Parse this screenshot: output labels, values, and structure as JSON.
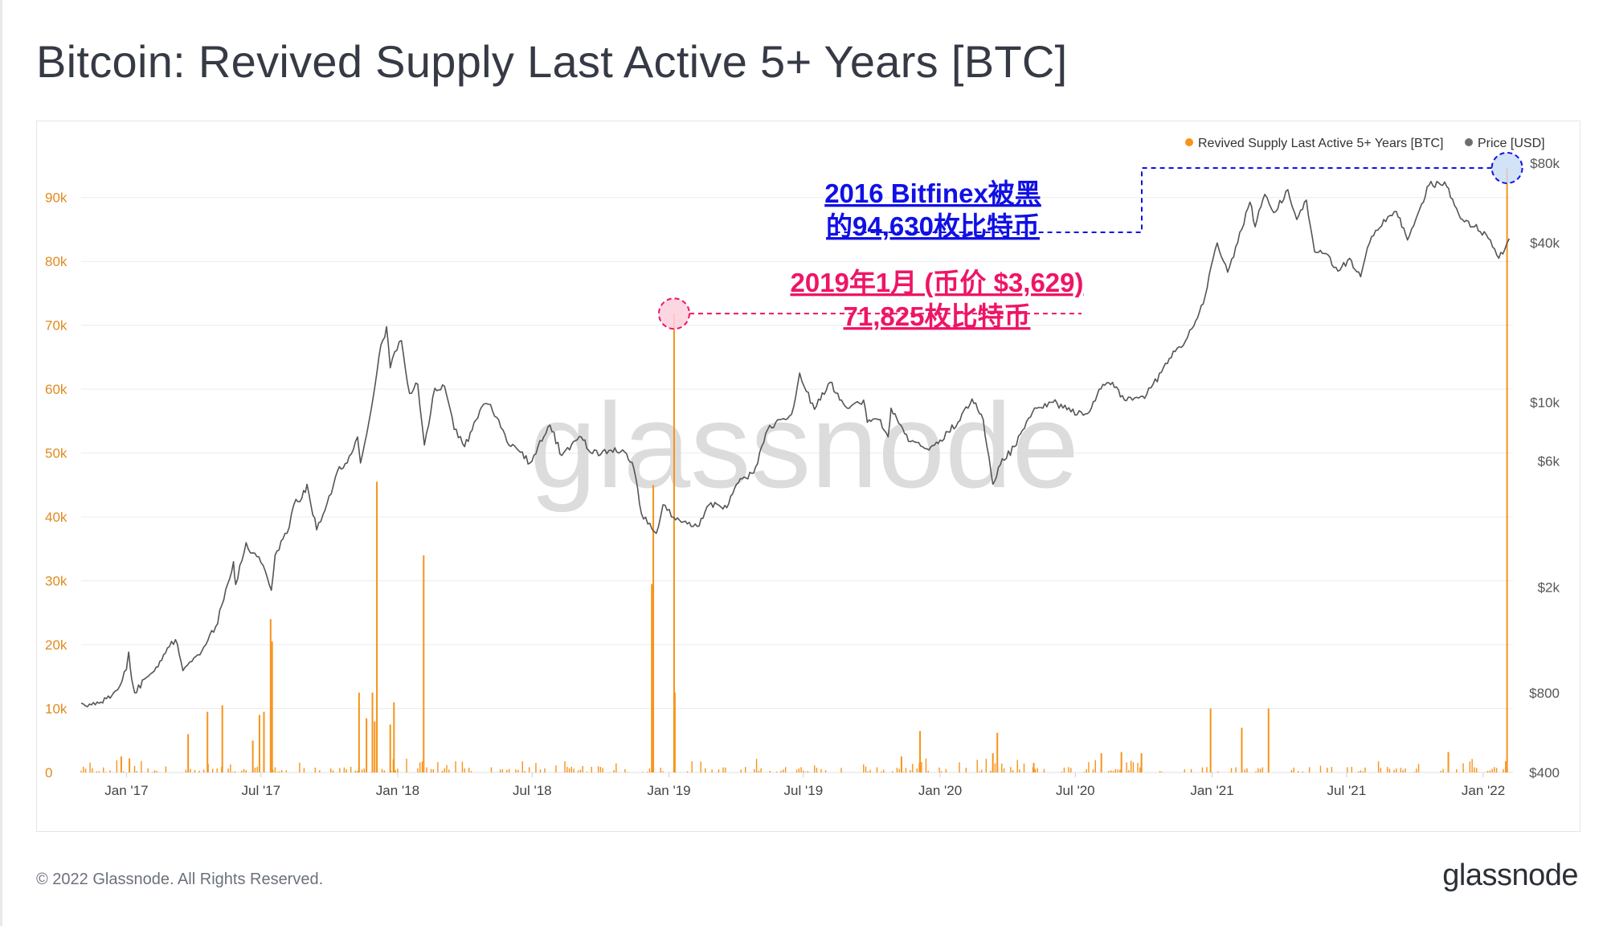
{
  "page": {
    "title": "Bitcoin: Revived Supply Last Active 5+ Years [BTC]",
    "footer_copyright": "© 2022 Glassnode. All Rights Reserved.",
    "footer_logo": "glassnode",
    "watermark": "glassnode"
  },
  "colors": {
    "bars": "#f7931a",
    "price_line": "#555555",
    "left_ticks": "#e08a1e",
    "right_ticks": "#555555",
    "annotation_blue": "#1010e6",
    "annotation_red": "#ee1566",
    "grid": "#ececec"
  },
  "chart_data": {
    "type": "bar+line",
    "title": "Bitcoin: Revived Supply Last Active 5+ Years [BTC]",
    "legend": [
      {
        "label": "Revived Supply Last Active 5+ Years [BTC]",
        "color": "#f7931a"
      },
      {
        "label": "Price [USD]",
        "color": "#6e6e6e"
      }
    ],
    "legend_position": "top-right",
    "x_range": [
      "2016-11-01",
      "2022-02-10"
    ],
    "x_ticks": [
      {
        "date": "2017-01-01",
        "label": "Jan '17"
      },
      {
        "date": "2017-07-01",
        "label": "Jul '17"
      },
      {
        "date": "2018-01-01",
        "label": "Jan '18"
      },
      {
        "date": "2018-07-01",
        "label": "Jul '18"
      },
      {
        "date": "2019-01-01",
        "label": "Jan '19"
      },
      {
        "date": "2019-07-01",
        "label": "Jul '19"
      },
      {
        "date": "2020-01-01",
        "label": "Jan '20"
      },
      {
        "date": "2020-07-01",
        "label": "Jul '20"
      },
      {
        "date": "2021-01-01",
        "label": "Jan '21"
      },
      {
        "date": "2021-07-01",
        "label": "Jul '21"
      },
      {
        "date": "2022-01-01",
        "label": "Jan '22"
      }
    ],
    "left_axis": {
      "name": "Revived Supply Last Active 5+ Years [BTC]",
      "range": [
        0,
        95000
      ],
      "ticks": [
        {
          "value": 0,
          "label": "0"
        },
        {
          "value": 10000,
          "label": "10k"
        },
        {
          "value": 20000,
          "label": "20k"
        },
        {
          "value": 30000,
          "label": "30k"
        },
        {
          "value": 40000,
          "label": "40k"
        },
        {
          "value": 50000,
          "label": "50k"
        },
        {
          "value": 60000,
          "label": "60k"
        },
        {
          "value": 70000,
          "label": "70k"
        },
        {
          "value": 80000,
          "label": "80k"
        },
        {
          "value": 90000,
          "label": "90k"
        }
      ]
    },
    "right_axis": {
      "name": "Price [USD]",
      "scale": "log",
      "range": [
        400,
        80000
      ],
      "ticks": [
        {
          "value": 400,
          "label": "$400"
        },
        {
          "value": 800,
          "label": "$800"
        },
        {
          "value": 2000,
          "label": "$2k"
        },
        {
          "value": 6000,
          "label": "$6k"
        },
        {
          "value": 10000,
          "label": "$10k"
        },
        {
          "value": 40000,
          "label": "$40k"
        },
        {
          "value": 80000,
          "label": "$80k"
        }
      ]
    },
    "revived_supply_spikes": [
      {
        "date": "2016-12-25",
        "value": 2500
      },
      {
        "date": "2017-01-05",
        "value": 2200
      },
      {
        "date": "2017-03-25",
        "value": 6000
      },
      {
        "date": "2017-04-20",
        "value": 9500
      },
      {
        "date": "2017-05-10",
        "value": 10500
      },
      {
        "date": "2017-06-20",
        "value": 5000
      },
      {
        "date": "2017-06-29",
        "value": 9000
      },
      {
        "date": "2017-07-05",
        "value": 9500
      },
      {
        "date": "2017-07-14",
        "value": 24000
      },
      {
        "date": "2017-07-16",
        "value": 20500
      },
      {
        "date": "2017-11-10",
        "value": 12500
      },
      {
        "date": "2017-11-20",
        "value": 8500
      },
      {
        "date": "2017-11-28",
        "value": 12500
      },
      {
        "date": "2017-12-01",
        "value": 8000
      },
      {
        "date": "2017-12-04",
        "value": 45500
      },
      {
        "date": "2017-12-22",
        "value": 7500
      },
      {
        "date": "2017-12-27",
        "value": 11000
      },
      {
        "date": "2018-02-05",
        "value": 34000
      },
      {
        "date": "2018-12-09",
        "value": 29500
      },
      {
        "date": "2018-12-11",
        "value": 45000
      },
      {
        "date": "2019-01-08",
        "value": 71825
      },
      {
        "date": "2019-01-09",
        "value": 12500
      },
      {
        "date": "2019-11-10",
        "value": 2500
      },
      {
        "date": "2019-12-05",
        "value": 6500
      },
      {
        "date": "2020-03-12",
        "value": 3000
      },
      {
        "date": "2020-03-18",
        "value": 6200
      },
      {
        "date": "2020-05-06",
        "value": 1500
      },
      {
        "date": "2020-08-05",
        "value": 3000
      },
      {
        "date": "2020-09-01",
        "value": 3200
      },
      {
        "date": "2020-09-28",
        "value": 3000
      },
      {
        "date": "2020-12-30",
        "value": 10000
      },
      {
        "date": "2021-02-10",
        "value": 7000
      },
      {
        "date": "2021-03-18",
        "value": 10000
      },
      {
        "date": "2021-11-15",
        "value": 3200
      },
      {
        "date": "2022-02-02",
        "value": 94630
      }
    ],
    "price_series": [
      [
        "2016-11-01",
        730
      ],
      [
        "2016-11-15",
        720
      ],
      [
        "2016-11-25",
        730
      ],
      [
        "2016-12-05",
        760
      ],
      [
        "2016-12-20",
        820
      ],
      [
        "2017-01-01",
        980
      ],
      [
        "2017-01-04",
        1140
      ],
      [
        "2017-01-08",
        900
      ],
      [
        "2017-01-12",
        800
      ],
      [
        "2017-01-25",
        900
      ],
      [
        "2017-02-10",
        1000
      ],
      [
        "2017-02-25",
        1180
      ],
      [
        "2017-03-08",
        1270
      ],
      [
        "2017-03-18",
        970
      ],
      [
        "2017-03-30",
        1050
      ],
      [
        "2017-04-15",
        1190
      ],
      [
        "2017-05-01",
        1420
      ],
      [
        "2017-05-12",
        1800
      ],
      [
        "2017-05-25",
        2500
      ],
      [
        "2017-05-28",
        2050
      ],
      [
        "2017-06-11",
        2950
      ],
      [
        "2017-06-20",
        2700
      ],
      [
        "2017-07-01",
        2480
      ],
      [
        "2017-07-15",
        1950
      ],
      [
        "2017-07-20",
        2650
      ],
      [
        "2017-08-05",
        3200
      ],
      [
        "2017-08-17",
        4300
      ],
      [
        "2017-08-25",
        4350
      ],
      [
        "2017-09-01",
        4900
      ],
      [
        "2017-09-14",
        3300
      ],
      [
        "2017-09-25",
        3900
      ],
      [
        "2017-10-12",
        5500
      ],
      [
        "2017-10-25",
        5900
      ],
      [
        "2017-11-08",
        7400
      ],
      [
        "2017-11-12",
        5900
      ],
      [
        "2017-11-26",
        9300
      ],
      [
        "2017-12-07",
        15000
      ],
      [
        "2017-12-17",
        19300
      ],
      [
        "2017-12-22",
        13500
      ],
      [
        "2017-12-28",
        15500
      ],
      [
        "2018-01-06",
        17100
      ],
      [
        "2018-01-17",
        10800
      ],
      [
        "2018-01-28",
        11700
      ],
      [
        "2018-02-06",
        6900
      ],
      [
        "2018-02-20",
        11300
      ],
      [
        "2018-03-05",
        11500
      ],
      [
        "2018-03-18",
        7900
      ],
      [
        "2018-04-01",
        6800
      ],
      [
        "2018-04-24",
        9600
      ],
      [
        "2018-05-06",
        9800
      ],
      [
        "2018-05-28",
        7100
      ],
      [
        "2018-06-10",
        6700
      ],
      [
        "2018-06-28",
        5900
      ],
      [
        "2018-07-25",
        8200
      ],
      [
        "2018-08-10",
        6300
      ],
      [
        "2018-09-05",
        7400
      ],
      [
        "2018-09-20",
        6400
      ],
      [
        "2018-10-15",
        6600
      ],
      [
        "2018-11-05",
        6400
      ],
      [
        "2018-11-15",
        5600
      ],
      [
        "2018-11-25",
        3800
      ],
      [
        "2018-12-15",
        3200
      ],
      [
        "2018-12-24",
        4100
      ],
      [
        "2019-01-10",
        3600
      ],
      [
        "2019-02-08",
        3400
      ],
      [
        "2019-02-24",
        4100
      ],
      [
        "2019-03-20",
        4000
      ],
      [
        "2019-04-02",
        4900
      ],
      [
        "2019-04-25",
        5400
      ],
      [
        "2019-05-14",
        7900
      ],
      [
        "2019-05-30",
        8600
      ],
      [
        "2019-06-15",
        9000
      ],
      [
        "2019-06-26",
        12900
      ],
      [
        "2019-07-05",
        11000
      ],
      [
        "2019-07-16",
        9400
      ],
      [
        "2019-08-06",
        11900
      ],
      [
        "2019-08-29",
        9500
      ],
      [
        "2019-09-20",
        10200
      ],
      [
        "2019-09-25",
        8400
      ],
      [
        "2019-10-10",
        8600
      ],
      [
        "2019-10-23",
        7400
      ],
      [
        "2019-10-27",
        9500
      ],
      [
        "2019-11-22",
        7100
      ],
      [
        "2019-12-17",
        6600
      ],
      [
        "2020-01-01",
        7200
      ],
      [
        "2020-01-25",
        8400
      ],
      [
        "2020-02-13",
        10300
      ],
      [
        "2020-02-28",
        8600
      ],
      [
        "2020-03-12",
        4900
      ],
      [
        "2020-03-22",
        5800
      ],
      [
        "2020-04-10",
        6800
      ],
      [
        "2020-04-29",
        8700
      ],
      [
        "2020-05-10",
        9500
      ],
      [
        "2020-06-01",
        10000
      ],
      [
        "2020-06-25",
        9200
      ],
      [
        "2020-07-20",
        9200
      ],
      [
        "2020-08-02",
        11200
      ],
      [
        "2020-08-20",
        11900
      ],
      [
        "2020-09-05",
        10200
      ],
      [
        "2020-10-05",
        10700
      ],
      [
        "2020-10-25",
        13000
      ],
      [
        "2020-11-15",
        16000
      ],
      [
        "2020-11-26",
        17000
      ],
      [
        "2020-12-05",
        19000
      ],
      [
        "2020-12-20",
        23500
      ],
      [
        "2021-01-08",
        40000
      ],
      [
        "2021-01-22",
        31000
      ],
      [
        "2021-02-10",
        45000
      ],
      [
        "2021-02-21",
        57000
      ],
      [
        "2021-02-28",
        46000
      ],
      [
        "2021-03-13",
        61000
      ],
      [
        "2021-03-25",
        52000
      ],
      [
        "2021-04-13",
        63500
      ],
      [
        "2021-04-25",
        49000
      ],
      [
        "2021-05-08",
        58000
      ],
      [
        "2021-05-19",
        37000
      ],
      [
        "2021-06-01",
        36500
      ],
      [
        "2021-06-22",
        31500
      ],
      [
        "2021-07-05",
        35000
      ],
      [
        "2021-07-20",
        29800
      ],
      [
        "2021-08-01",
        40000
      ],
      [
        "2021-08-20",
        49000
      ],
      [
        "2021-09-06",
        52600
      ],
      [
        "2021-09-21",
        41000
      ],
      [
        "2021-10-05",
        51500
      ],
      [
        "2021-10-20",
        66000
      ],
      [
        "2021-11-10",
        68000
      ],
      [
        "2021-11-26",
        54000
      ],
      [
        "2021-12-04",
        49000
      ],
      [
        "2021-12-20",
        46000
      ],
      [
        "2022-01-05",
        43000
      ],
      [
        "2022-01-22",
        35000
      ],
      [
        "2022-01-30",
        37800
      ],
      [
        "2022-02-05",
        41500
      ]
    ],
    "annotations": [
      {
        "line1": "2016 Bitfinex被黑",
        "line2": "的94,630枚比特币",
        "date": "2022-02-02",
        "value": 94630,
        "color": "#1010e6"
      },
      {
        "line1": "2019年1月 (币价 $3,629)",
        "line2": "71,825枚比特币",
        "date": "2019-01-08",
        "value": 71825,
        "color": "#ee1566"
      }
    ]
  }
}
